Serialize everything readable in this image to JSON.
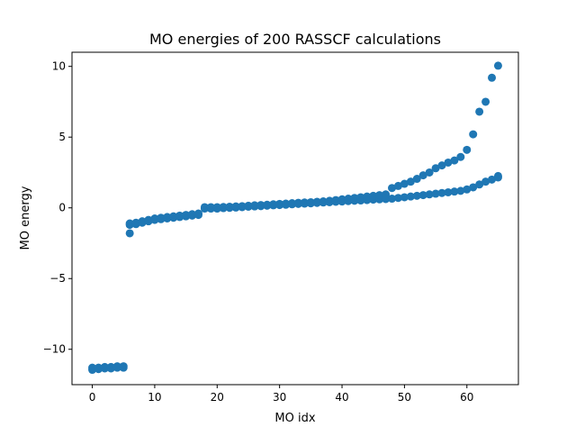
{
  "chart_data": {
    "type": "scatter",
    "title": "MO energies of 200 RASSCF calculations",
    "xlabel": "MO idx",
    "ylabel": "MO energy",
    "xlim": [
      -3.25,
      68.25
    ],
    "ylim": [
      -12.5,
      11.0
    ],
    "x_ticks": [
      0,
      10,
      20,
      30,
      40,
      50,
      60
    ],
    "y_ticks": [
      -10,
      -5,
      0,
      5,
      10
    ],
    "grid": false,
    "legend": "none",
    "marker_color": "#1f77b4",
    "series": [
      {
        "low_band": [
          [
            0,
            -11.45
          ],
          [
            0,
            -11.3
          ],
          [
            1,
            -11.4
          ],
          [
            1,
            -11.3
          ],
          [
            2,
            -11.35
          ],
          [
            2,
            -11.25
          ],
          [
            3,
            -11.35
          ],
          [
            3,
            -11.25
          ],
          [
            4,
            -11.3
          ],
          [
            4,
            -11.2
          ],
          [
            5,
            -11.3
          ],
          [
            5,
            -11.2
          ],
          [
            6,
            -1.8
          ],
          [
            6,
            -1.2
          ],
          [
            6,
            -1.1
          ],
          [
            7,
            -1.15
          ],
          [
            7,
            -1.05
          ],
          [
            8,
            -1.05
          ],
          [
            8,
            -0.95
          ],
          [
            9,
            -0.95
          ],
          [
            9,
            -0.85
          ],
          [
            10,
            -0.85
          ],
          [
            10,
            -0.75
          ],
          [
            11,
            -0.8
          ],
          [
            11,
            -0.7
          ],
          [
            12,
            -0.75
          ],
          [
            12,
            -0.65
          ],
          [
            13,
            -0.7
          ],
          [
            13,
            -0.6
          ],
          [
            14,
            -0.65
          ],
          [
            14,
            -0.55
          ],
          [
            15,
            -0.6
          ],
          [
            15,
            -0.5
          ],
          [
            16,
            -0.55
          ],
          [
            16,
            -0.45
          ],
          [
            17,
            -0.5
          ],
          [
            17,
            -0.4
          ],
          [
            18,
            -0.05
          ],
          [
            18,
            0.05
          ],
          [
            19,
            -0.05
          ],
          [
            19,
            0.05
          ],
          [
            20,
            -0.05
          ],
          [
            20,
            0.05
          ],
          [
            21,
            -0.02
          ],
          [
            21,
            0.06
          ],
          [
            22,
            0.0
          ],
          [
            22,
            0.08
          ],
          [
            23,
            0.02
          ],
          [
            23,
            0.1
          ],
          [
            24,
            0.05
          ],
          [
            24,
            0.12
          ],
          [
            25,
            0.08
          ],
          [
            25,
            0.15
          ],
          [
            26,
            0.1
          ],
          [
            26,
            0.18
          ],
          [
            27,
            0.12
          ],
          [
            27,
            0.2
          ],
          [
            28,
            0.15
          ],
          [
            28,
            0.22
          ],
          [
            29,
            0.18
          ],
          [
            29,
            0.25
          ],
          [
            30,
            0.2
          ],
          [
            30,
            0.28
          ],
          [
            31,
            0.22
          ],
          [
            31,
            0.3
          ],
          [
            32,
            0.25
          ],
          [
            32,
            0.33
          ],
          [
            33,
            0.28
          ],
          [
            33,
            0.36
          ],
          [
            34,
            0.3
          ],
          [
            34,
            0.38
          ],
          [
            35,
            0.32
          ],
          [
            35,
            0.4
          ],
          [
            36,
            0.35
          ],
          [
            36,
            0.43
          ],
          [
            37,
            0.38
          ],
          [
            37,
            0.46
          ],
          [
            38,
            0.4
          ],
          [
            38,
            0.5
          ],
          [
            39,
            0.43
          ],
          [
            39,
            0.55
          ],
          [
            40,
            0.45
          ],
          [
            40,
            0.6
          ],
          [
            41,
            0.48
          ],
          [
            41,
            0.65
          ],
          [
            42,
            0.5
          ],
          [
            42,
            0.7
          ],
          [
            43,
            0.52
          ],
          [
            43,
            0.75
          ],
          [
            44,
            0.55
          ],
          [
            44,
            0.8
          ],
          [
            45,
            0.58
          ],
          [
            45,
            0.85
          ],
          [
            46,
            0.6
          ],
          [
            46,
            0.9
          ],
          [
            47,
            0.62
          ],
          [
            47,
            0.95
          ],
          [
            48,
            0.65
          ],
          [
            49,
            0.7
          ],
          [
            50,
            0.75
          ],
          [
            51,
            0.8
          ],
          [
            52,
            0.85
          ],
          [
            53,
            0.9
          ],
          [
            54,
            0.95
          ],
          [
            55,
            1.0
          ],
          [
            56,
            1.05
          ],
          [
            57,
            1.1
          ],
          [
            58,
            1.15
          ],
          [
            59,
            1.2
          ],
          [
            60,
            1.3
          ],
          [
            61,
            1.45
          ],
          [
            62,
            1.65
          ],
          [
            63,
            1.85
          ],
          [
            64,
            2.0
          ],
          [
            65,
            2.15
          ],
          [
            65,
            2.25
          ]
        ]
      },
      {
        "upper_branch": [
          [
            48,
            1.4
          ],
          [
            49,
            1.55
          ],
          [
            50,
            1.7
          ],
          [
            51,
            1.85
          ],
          [
            52,
            2.05
          ],
          [
            53,
            2.3
          ],
          [
            54,
            2.5
          ],
          [
            55,
            2.8
          ],
          [
            56,
            3.0
          ],
          [
            57,
            3.2
          ],
          [
            58,
            3.35
          ],
          [
            59,
            3.6
          ],
          [
            60,
            4.1
          ],
          [
            61,
            5.2
          ],
          [
            62,
            6.8
          ],
          [
            63,
            7.5
          ],
          [
            64,
            9.2
          ],
          [
            65,
            10.05
          ]
        ]
      }
    ]
  }
}
